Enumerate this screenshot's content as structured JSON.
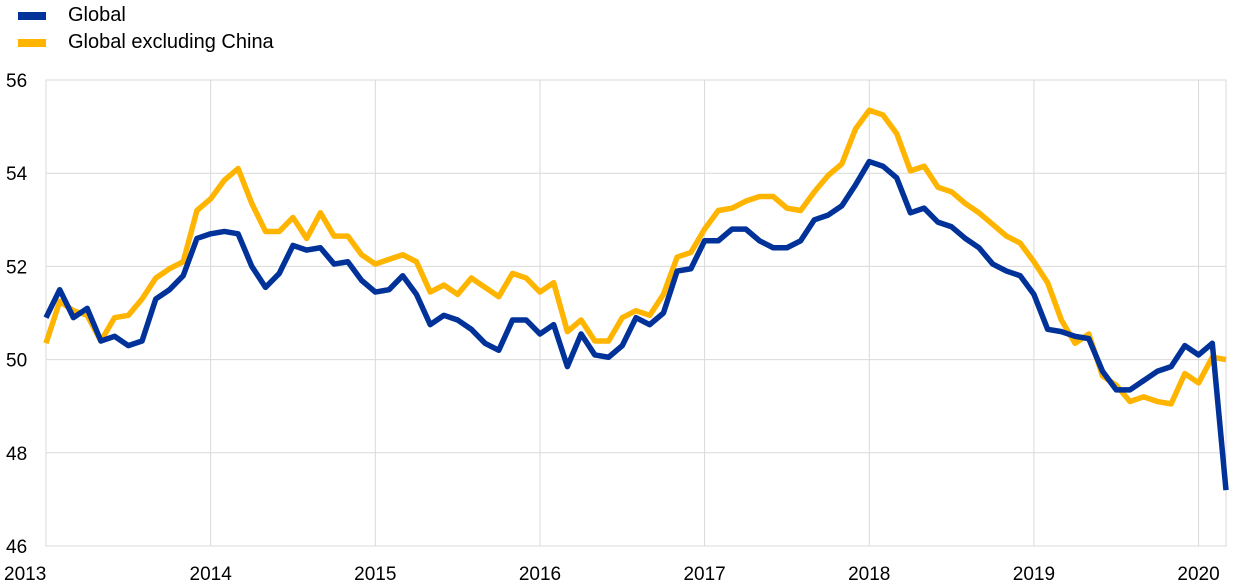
{
  "chart_data": {
    "type": "line",
    "title": "",
    "xlabel": "",
    "ylabel": "",
    "ylim": [
      46,
      56
    ],
    "yticks": [
      "46",
      "48",
      "50",
      "52",
      "54",
      "56"
    ],
    "xticks": [
      "2013",
      "2014",
      "2015",
      "2016",
      "2017",
      "2018",
      "2019",
      "2020"
    ],
    "grid": true,
    "legend_position": "top-left",
    "x_start": "2013-01",
    "x_frequency": "monthly",
    "series": [
      {
        "name": "Global",
        "color": "#003299",
        "values": [
          50.9,
          51.5,
          50.9,
          51.1,
          50.4,
          50.5,
          50.3,
          50.4,
          51.3,
          51.5,
          51.8,
          52.6,
          52.7,
          52.75,
          52.7,
          52.0,
          51.55,
          51.85,
          52.45,
          52.35,
          52.4,
          52.05,
          52.1,
          51.7,
          51.45,
          51.5,
          51.8,
          51.4,
          50.75,
          50.95,
          50.85,
          50.65,
          50.35,
          50.2,
          50.85,
          50.85,
          50.55,
          50.75,
          49.85,
          50.55,
          50.1,
          50.05,
          50.3,
          50.9,
          50.75,
          51.0,
          51.9,
          51.95,
          52.55,
          52.55,
          52.8,
          52.8,
          52.55,
          52.4,
          52.4,
          52.55,
          53.0,
          53.1,
          53.3,
          53.75,
          54.25,
          54.15,
          53.9,
          53.15,
          53.25,
          52.95,
          52.85,
          52.6,
          52.4,
          52.05,
          51.9,
          51.8,
          51.4,
          50.65,
          50.6,
          50.5,
          50.45,
          49.75,
          49.35,
          49.35,
          49.55,
          49.75,
          49.85,
          50.3,
          50.1,
          50.35,
          47.2
        ]
      },
      {
        "name": "Global excluding China",
        "color": "#FFB400",
        "values": [
          50.35,
          51.25,
          51.05,
          50.95,
          50.4,
          50.9,
          50.95,
          51.3,
          51.75,
          51.95,
          52.1,
          53.2,
          53.45,
          53.85,
          54.1,
          53.35,
          52.75,
          52.75,
          53.05,
          52.6,
          53.15,
          52.65,
          52.65,
          52.25,
          52.05,
          52.15,
          52.25,
          52.1,
          51.45,
          51.6,
          51.4,
          51.75,
          51.55,
          51.35,
          51.85,
          51.75,
          51.45,
          51.65,
          50.6,
          50.85,
          50.4,
          50.4,
          50.9,
          51.05,
          50.95,
          51.4,
          52.2,
          52.3,
          52.8,
          53.2,
          53.25,
          53.4,
          53.5,
          53.5,
          53.25,
          53.2,
          53.6,
          53.95,
          54.2,
          54.95,
          55.35,
          55.25,
          54.85,
          54.05,
          54.15,
          53.7,
          53.6,
          53.35,
          53.15,
          52.9,
          52.65,
          52.5,
          52.1,
          51.65,
          50.85,
          50.35,
          50.55,
          49.65,
          49.45,
          49.1,
          49.2,
          49.1,
          49.05,
          49.7,
          49.5,
          50.05,
          50.0
        ]
      }
    ]
  }
}
